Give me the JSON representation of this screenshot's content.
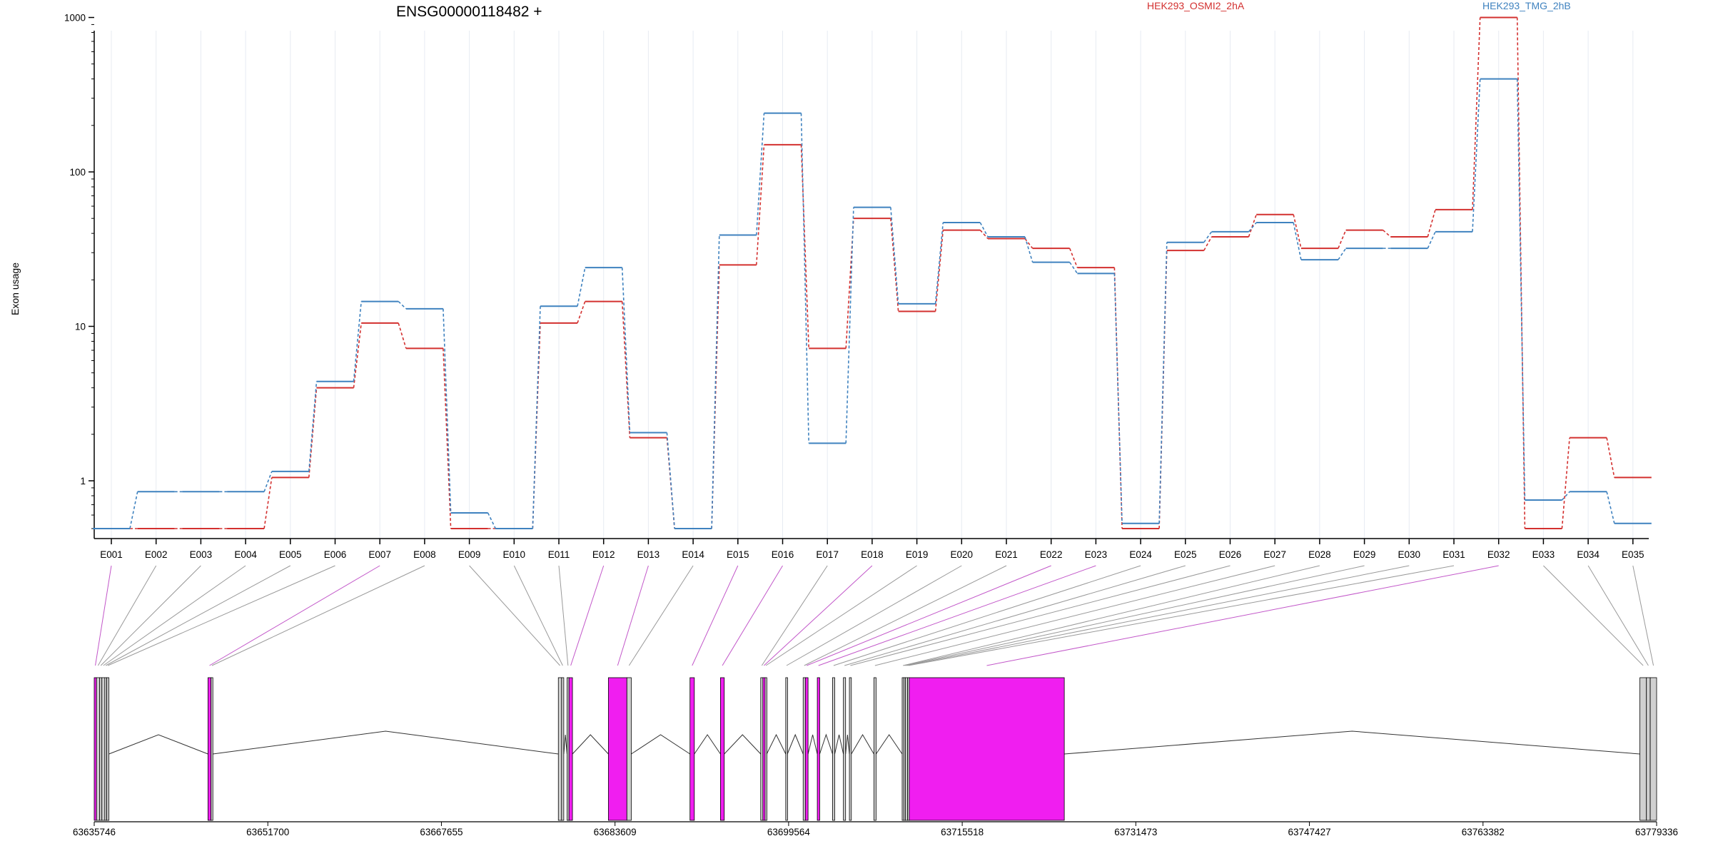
{
  "chart_data": {
    "type": "line",
    "title": "ENSG00000118482 +",
    "ylabel": "Exon usage",
    "yscale": "log",
    "ylim": [
      0.5,
      1000
    ],
    "yticks": [
      {
        "v": 1,
        "label": "1"
      },
      {
        "v": 10,
        "label": "10"
      },
      {
        "v": 100,
        "label": "100"
      },
      {
        "v": 1000,
        "label": "1000"
      }
    ],
    "categories": [
      "E001",
      "E002",
      "E003",
      "E004",
      "E005",
      "E006",
      "E007",
      "E008",
      "E009",
      "E010",
      "E011",
      "E012",
      "E013",
      "E014",
      "E015",
      "E016",
      "E017",
      "E018",
      "E019",
      "E020",
      "E021",
      "E022",
      "E023",
      "E024",
      "E025",
      "E026",
      "E027",
      "E028",
      "E029",
      "E030",
      "E031",
      "E032",
      "E033",
      "E034",
      "E035"
    ],
    "series": [
      {
        "name": "HEK293_OSMI2_2hA",
        "color": "#d3302f",
        "values": [
          0.5,
          0.5,
          0.5,
          0.5,
          1.05,
          4.0,
          10.5,
          7.2,
          0.5,
          0.5,
          10.5,
          14.5,
          1.9,
          0.5,
          25,
          150,
          7.2,
          50,
          12.5,
          42,
          37,
          32,
          24,
          0.5,
          31,
          38,
          53,
          32,
          42,
          38,
          57,
          1000,
          0.5,
          1.9,
          1.05
        ]
      },
      {
        "name": "HEK293_TMG_2hB",
        "color": "#3f82bf",
        "values": [
          0.5,
          0.85,
          0.85,
          0.85,
          1.15,
          4.4,
          14.5,
          13,
          0.62,
          0.5,
          13.5,
          24,
          2.05,
          0.5,
          39,
          240,
          1.75,
          59,
          14,
          47,
          38,
          26,
          22,
          0.53,
          35,
          41,
          47,
          27,
          32,
          32,
          41,
          400,
          0.75,
          0.85,
          0.53
        ]
      }
    ],
    "grid": true,
    "legend_placement": "top"
  },
  "gene_model": {
    "coordinate_labels": [
      "63635746",
      "63651700",
      "63667655",
      "63683609",
      "63699564",
      "63715518",
      "63731473",
      "63747427",
      "63763382",
      "63779336"
    ],
    "genome_start": 63635746,
    "genome_end": 63779336,
    "colors": {
      "highlight": "#f01ef0",
      "normal": "#d0d0d0",
      "outline": "#000000"
    },
    "exon_blocks": [
      {
        "exon": "E001",
        "start": 63635746,
        "end": 63635950,
        "highlight": true
      },
      {
        "exon": "E002",
        "start": 63635950,
        "end": 63636250,
        "highlight": false
      },
      {
        "exon": "E003",
        "start": 63636250,
        "end": 63636450,
        "highlight": false
      },
      {
        "exon": "E004",
        "start": 63636450,
        "end": 63636720,
        "highlight": false
      },
      {
        "exon": "E005",
        "start": 63636720,
        "end": 63636900,
        "highlight": false
      },
      {
        "exon": "E006",
        "start": 63636900,
        "end": 63637100,
        "highlight": false
      },
      {
        "exon": "E007",
        "start": 63646200,
        "end": 63646480,
        "highlight": true
      },
      {
        "exon": "E008",
        "start": 63646480,
        "end": 63646650,
        "highlight": false
      },
      {
        "exon": "E009",
        "start": 63678400,
        "end": 63678700,
        "highlight": false
      },
      {
        "exon": "E010",
        "start": 63678700,
        "end": 63678900,
        "highlight": false
      },
      {
        "exon": "E011",
        "start": 63679200,
        "end": 63679380,
        "highlight": false
      },
      {
        "exon": "E012",
        "start": 63679380,
        "end": 63679700,
        "highlight": true
      },
      {
        "exon": "E013",
        "start": 63683000,
        "end": 63684700,
        "highlight": true
      },
      {
        "exon": "E014",
        "start": 63684700,
        "end": 63685100,
        "highlight": false
      },
      {
        "exon": "E015",
        "start": 63690500,
        "end": 63690900,
        "highlight": true
      },
      {
        "exon": "E016",
        "start": 63693300,
        "end": 63693650,
        "highlight": true
      },
      {
        "exon": "E017",
        "start": 63697000,
        "end": 63697200,
        "highlight": false
      },
      {
        "exon": "E018",
        "start": 63697200,
        "end": 63697400,
        "highlight": true
      },
      {
        "exon": "E019",
        "start": 63697400,
        "end": 63697550,
        "highlight": false
      },
      {
        "exon": "E020",
        "start": 63699300,
        "end": 63699450,
        "highlight": false
      },
      {
        "exon": "E021",
        "start": 63700900,
        "end": 63701100,
        "highlight": false
      },
      {
        "exon": "E022",
        "start": 63701100,
        "end": 63701350,
        "highlight": true
      },
      {
        "exon": "E023",
        "start": 63702200,
        "end": 63702420,
        "highlight": true
      },
      {
        "exon": "E024",
        "start": 63703600,
        "end": 63703800,
        "highlight": false
      },
      {
        "exon": "E025",
        "start": 63704600,
        "end": 63704800,
        "highlight": false
      },
      {
        "exon": "E026",
        "start": 63705150,
        "end": 63705330,
        "highlight": false
      },
      {
        "exon": "E027",
        "start": 63707400,
        "end": 63707600,
        "highlight": false
      },
      {
        "exon": "E028",
        "start": 63710000,
        "end": 63710150,
        "highlight": false
      },
      {
        "exon": "E029",
        "start": 63710150,
        "end": 63710300,
        "highlight": false
      },
      {
        "exon": "E030",
        "start": 63710300,
        "end": 63710500,
        "highlight": false
      },
      {
        "exon": "E031",
        "start": 63710500,
        "end": 63710650,
        "highlight": false
      },
      {
        "exon": "E032",
        "start": 63710650,
        "end": 63724900,
        "highlight": true
      },
      {
        "exon": "E033",
        "start": 63777800,
        "end": 63778400,
        "highlight": false
      },
      {
        "exon": "E034",
        "start": 63778400,
        "end": 63778750,
        "highlight": false
      },
      {
        "exon": "E035",
        "start": 63778750,
        "end": 63779336,
        "highlight": false
      }
    ]
  }
}
